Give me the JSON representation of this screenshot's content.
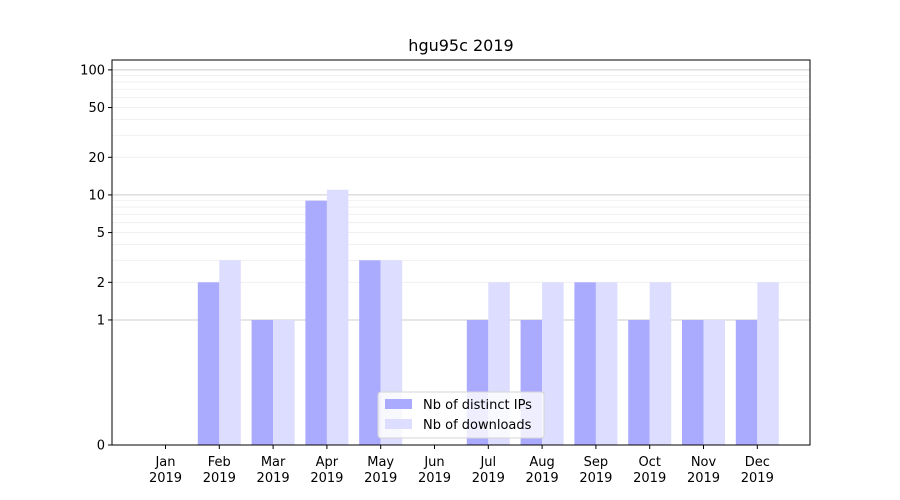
{
  "chart_data": {
    "type": "bar",
    "title": "hgu95c 2019",
    "xlabel": "",
    "ylabel": "",
    "scale": "symlog",
    "ylim": [
      0,
      120
    ],
    "yticks": [
      0,
      1,
      2,
      5,
      10,
      20,
      50,
      100
    ],
    "categories": [
      [
        "Jan",
        "2019"
      ],
      [
        "Feb",
        "2019"
      ],
      [
        "Mar",
        "2019"
      ],
      [
        "Apr",
        "2019"
      ],
      [
        "May",
        "2019"
      ],
      [
        "Jun",
        "2019"
      ],
      [
        "Jul",
        "2019"
      ],
      [
        "Aug",
        "2019"
      ],
      [
        "Sep",
        "2019"
      ],
      [
        "Oct",
        "2019"
      ],
      [
        "Nov",
        "2019"
      ],
      [
        "Dec",
        "2019"
      ]
    ],
    "series": [
      {
        "name": "Nb of distinct IPs",
        "color": "#aaaaff",
        "values": [
          0,
          2,
          1,
          9,
          3,
          0,
          1,
          1,
          2,
          1,
          1,
          1
        ]
      },
      {
        "name": "Nb of downloads",
        "color": "#ddddff",
        "values": [
          0,
          3,
          1,
          11,
          3,
          0,
          2,
          2,
          2,
          2,
          1,
          2
        ]
      }
    ],
    "legend": "bottom-center",
    "grid": true
  }
}
